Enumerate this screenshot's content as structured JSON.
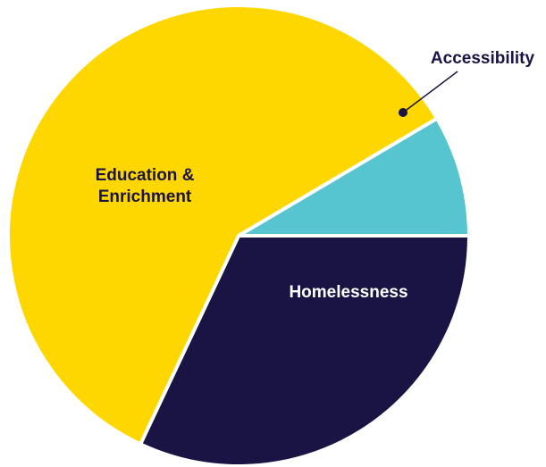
{
  "chart_data": {
    "type": "pie",
    "title": "",
    "slices": [
      {
        "label": "Homelessness",
        "value": 32,
        "color": "#1a1444",
        "label_color": "#ffffff"
      },
      {
        "label": "Education & Enrichment",
        "label_lines": [
          "Education &",
          "Enrichment"
        ],
        "value": 59.5,
        "color": "#ffd700",
        "label_color": "#1a1444"
      },
      {
        "label": "Accessibility",
        "value": 8.5,
        "color": "#56c5d0",
        "label_color": "#1a1444",
        "callout": true
      }
    ],
    "legend": "none",
    "colors": {
      "separator": "#ffffff",
      "leader_line": "#1a1444"
    }
  }
}
